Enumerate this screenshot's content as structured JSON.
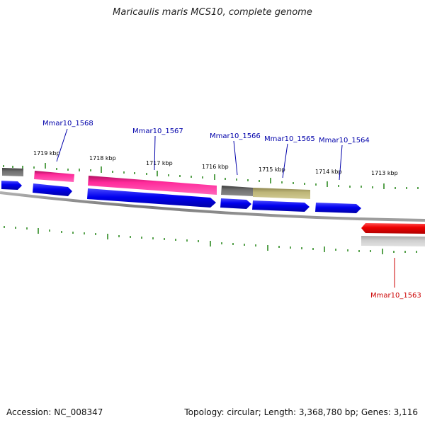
{
  "title": "Maricaulis maris MCS10, complete genome",
  "accession": "Accession: NC_008347",
  "summary": "Topology: circular; Length: 3,368,780 bp; Genes: 3,116",
  "colors": {
    "cds_blue": "#0000ee",
    "rna_magenta": "#ee1f8c",
    "gray": "#6e6e6e",
    "olive": "#b8b070",
    "red": "#ee0000",
    "light_gray": "#c4c4c4",
    "tick_green": "#2e8b22",
    "label_blue": "#0000aa",
    "label_red": "#cc0000",
    "backbone": "#8c8c8c"
  },
  "kbp_labels": [
    "1719 kbp",
    "1718 kbp",
    "1717 kbp",
    "1716 kbp",
    "1715 kbp",
    "1714 kbp",
    "1713 kbp"
  ],
  "gene_labels": [
    "Mmar10_1568",
    "Mmar10_1567",
    "Mmar10_1566",
    "Mmar10_1565",
    "Mmar10_1564",
    "Mmar10_1563"
  ]
}
